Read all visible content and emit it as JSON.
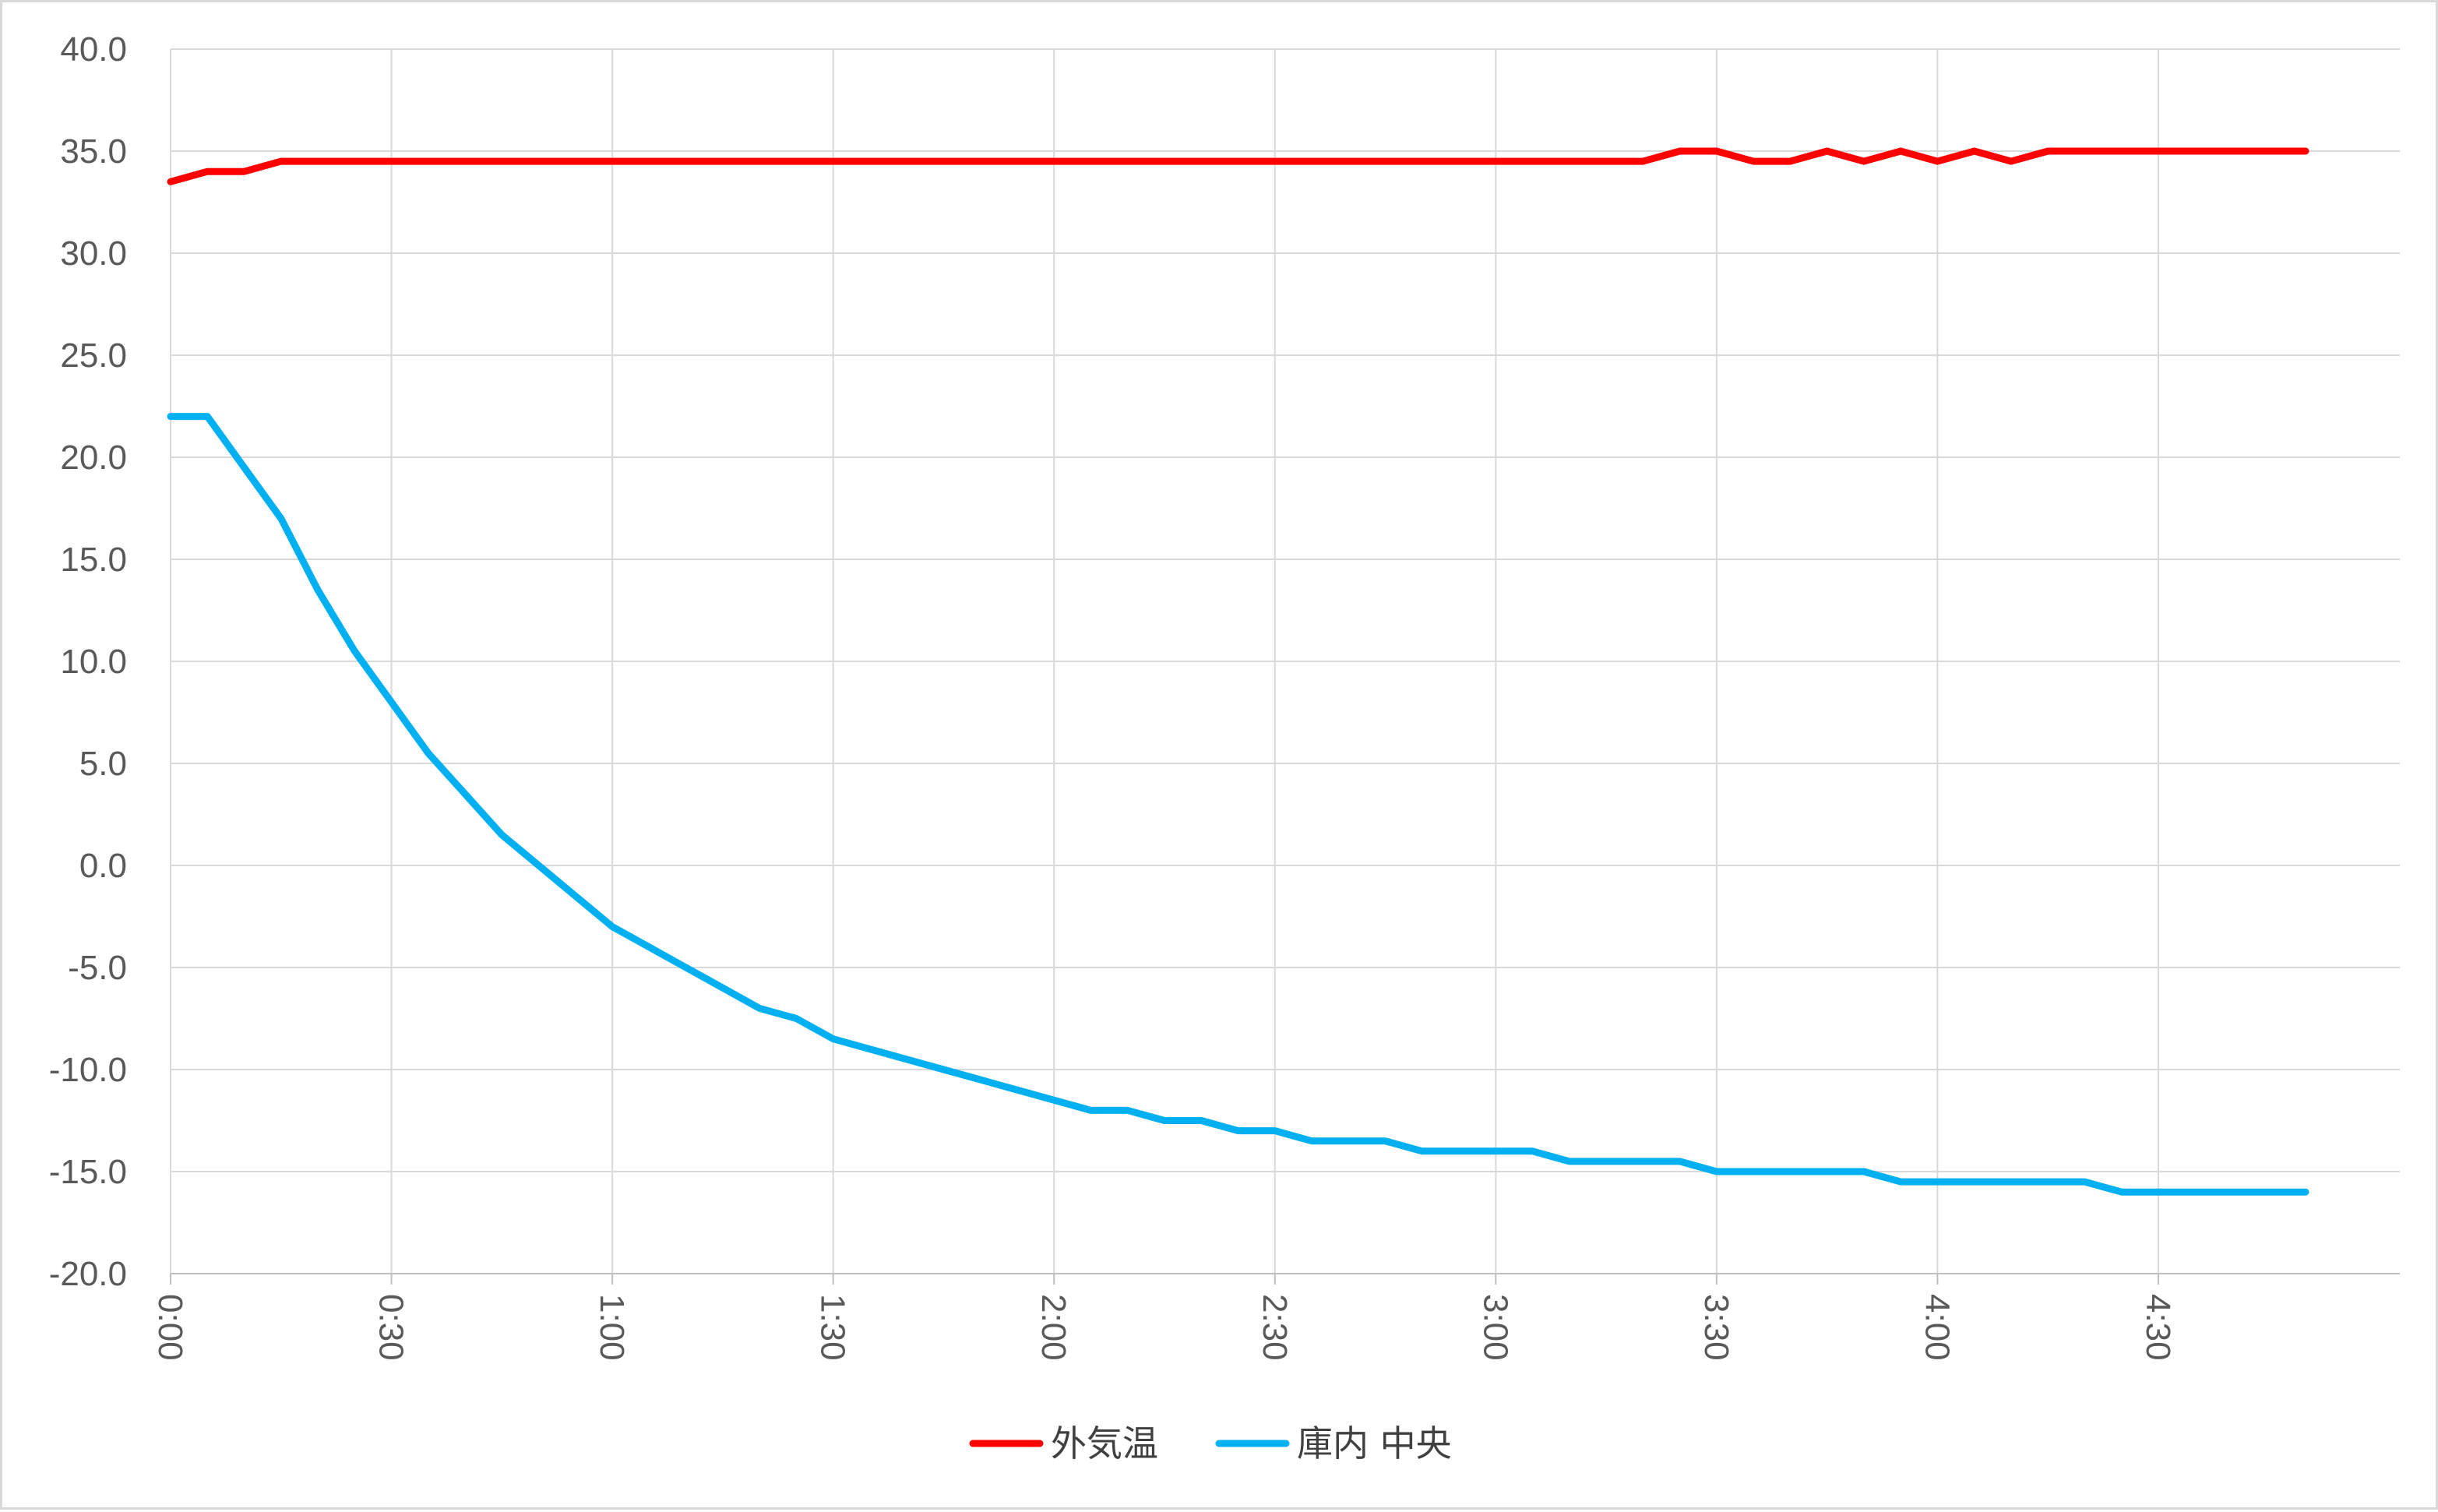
{
  "chart_data": {
    "type": "line",
    "title": "",
    "xlabel": "",
    "ylabel": "",
    "ylim": [
      -20,
      40
    ],
    "y_ticks": [
      "-20.0",
      "-15.0",
      "-10.0",
      "-5.0",
      "0.0",
      "5.0",
      "10.0",
      "15.0",
      "20.0",
      "25.0",
      "30.0",
      "35.0",
      "40.0"
    ],
    "x_tick_labels": [
      "0:00",
      "0:30",
      "1:00",
      "1:30",
      "2:00",
      "2:30",
      "3:00",
      "3:30",
      "4:00",
      "4:30"
    ],
    "x_unit": "minutes",
    "x_range": [
      0,
      290
    ],
    "grid": true,
    "legend_position": "bottom",
    "series": [
      {
        "name": "外気温",
        "color": "#ff0000",
        "x": [
          0,
          5,
          10,
          15,
          20,
          25,
          30,
          35,
          40,
          45,
          50,
          55,
          60,
          65,
          70,
          75,
          80,
          85,
          90,
          95,
          100,
          105,
          110,
          115,
          120,
          125,
          130,
          135,
          140,
          145,
          150,
          155,
          160,
          165,
          170,
          175,
          180,
          185,
          190,
          195,
          200,
          205,
          210,
          215,
          220,
          225,
          230,
          235,
          240,
          245,
          250,
          255,
          260,
          265,
          270,
          275,
          280,
          285,
          290
        ],
        "values": [
          33.5,
          34.0,
          34.0,
          34.5,
          34.5,
          34.5,
          34.5,
          34.5,
          34.5,
          34.5,
          34.5,
          34.5,
          34.5,
          34.5,
          34.5,
          34.5,
          34.5,
          34.5,
          34.5,
          34.5,
          34.5,
          34.5,
          34.5,
          34.5,
          34.5,
          34.5,
          34.5,
          34.5,
          34.5,
          34.5,
          34.5,
          34.5,
          34.5,
          34.5,
          34.5,
          34.5,
          34.5,
          34.5,
          34.5,
          34.5,
          34.5,
          35.0,
          35.0,
          34.5,
          34.5,
          35.0,
          34.5,
          35.0,
          34.5,
          35.0,
          34.5,
          35.0,
          35.0,
          35.0,
          35.0,
          35.0,
          35.0,
          35.0,
          35.0
        ]
      },
      {
        "name": "庫内 中央",
        "color": "#00b0f0",
        "x": [
          0,
          5,
          10,
          15,
          20,
          25,
          30,
          35,
          40,
          45,
          50,
          55,
          60,
          65,
          70,
          75,
          80,
          85,
          90,
          95,
          100,
          105,
          110,
          115,
          120,
          125,
          130,
          135,
          140,
          145,
          150,
          155,
          160,
          165,
          170,
          175,
          180,
          185,
          190,
          195,
          200,
          205,
          210,
          215,
          220,
          225,
          230,
          235,
          240,
          245,
          250,
          255,
          260,
          265,
          270,
          275,
          280,
          285,
          290
        ],
        "values": [
          22.0,
          22.0,
          19.5,
          17.0,
          13.5,
          10.5,
          8.0,
          5.5,
          3.5,
          1.5,
          0.0,
          -1.5,
          -3.0,
          -4.0,
          -5.0,
          -6.0,
          -7.0,
          -7.5,
          -8.5,
          -9.0,
          -9.5,
          -10.0,
          -10.5,
          -11.0,
          -11.5,
          -12.0,
          -12.0,
          -12.5,
          -12.5,
          -13.0,
          -13.0,
          -13.5,
          -13.5,
          -13.5,
          -14.0,
          -14.0,
          -14.0,
          -14.0,
          -14.5,
          -14.5,
          -14.5,
          -14.5,
          -15.0,
          -15.0,
          -15.0,
          -15.0,
          -15.0,
          -15.5,
          -15.5,
          -15.5,
          -15.5,
          -15.5,
          -15.5,
          -16.0,
          -16.0,
          -16.0,
          -16.0,
          -16.0,
          -16.0
        ]
      }
    ]
  }
}
